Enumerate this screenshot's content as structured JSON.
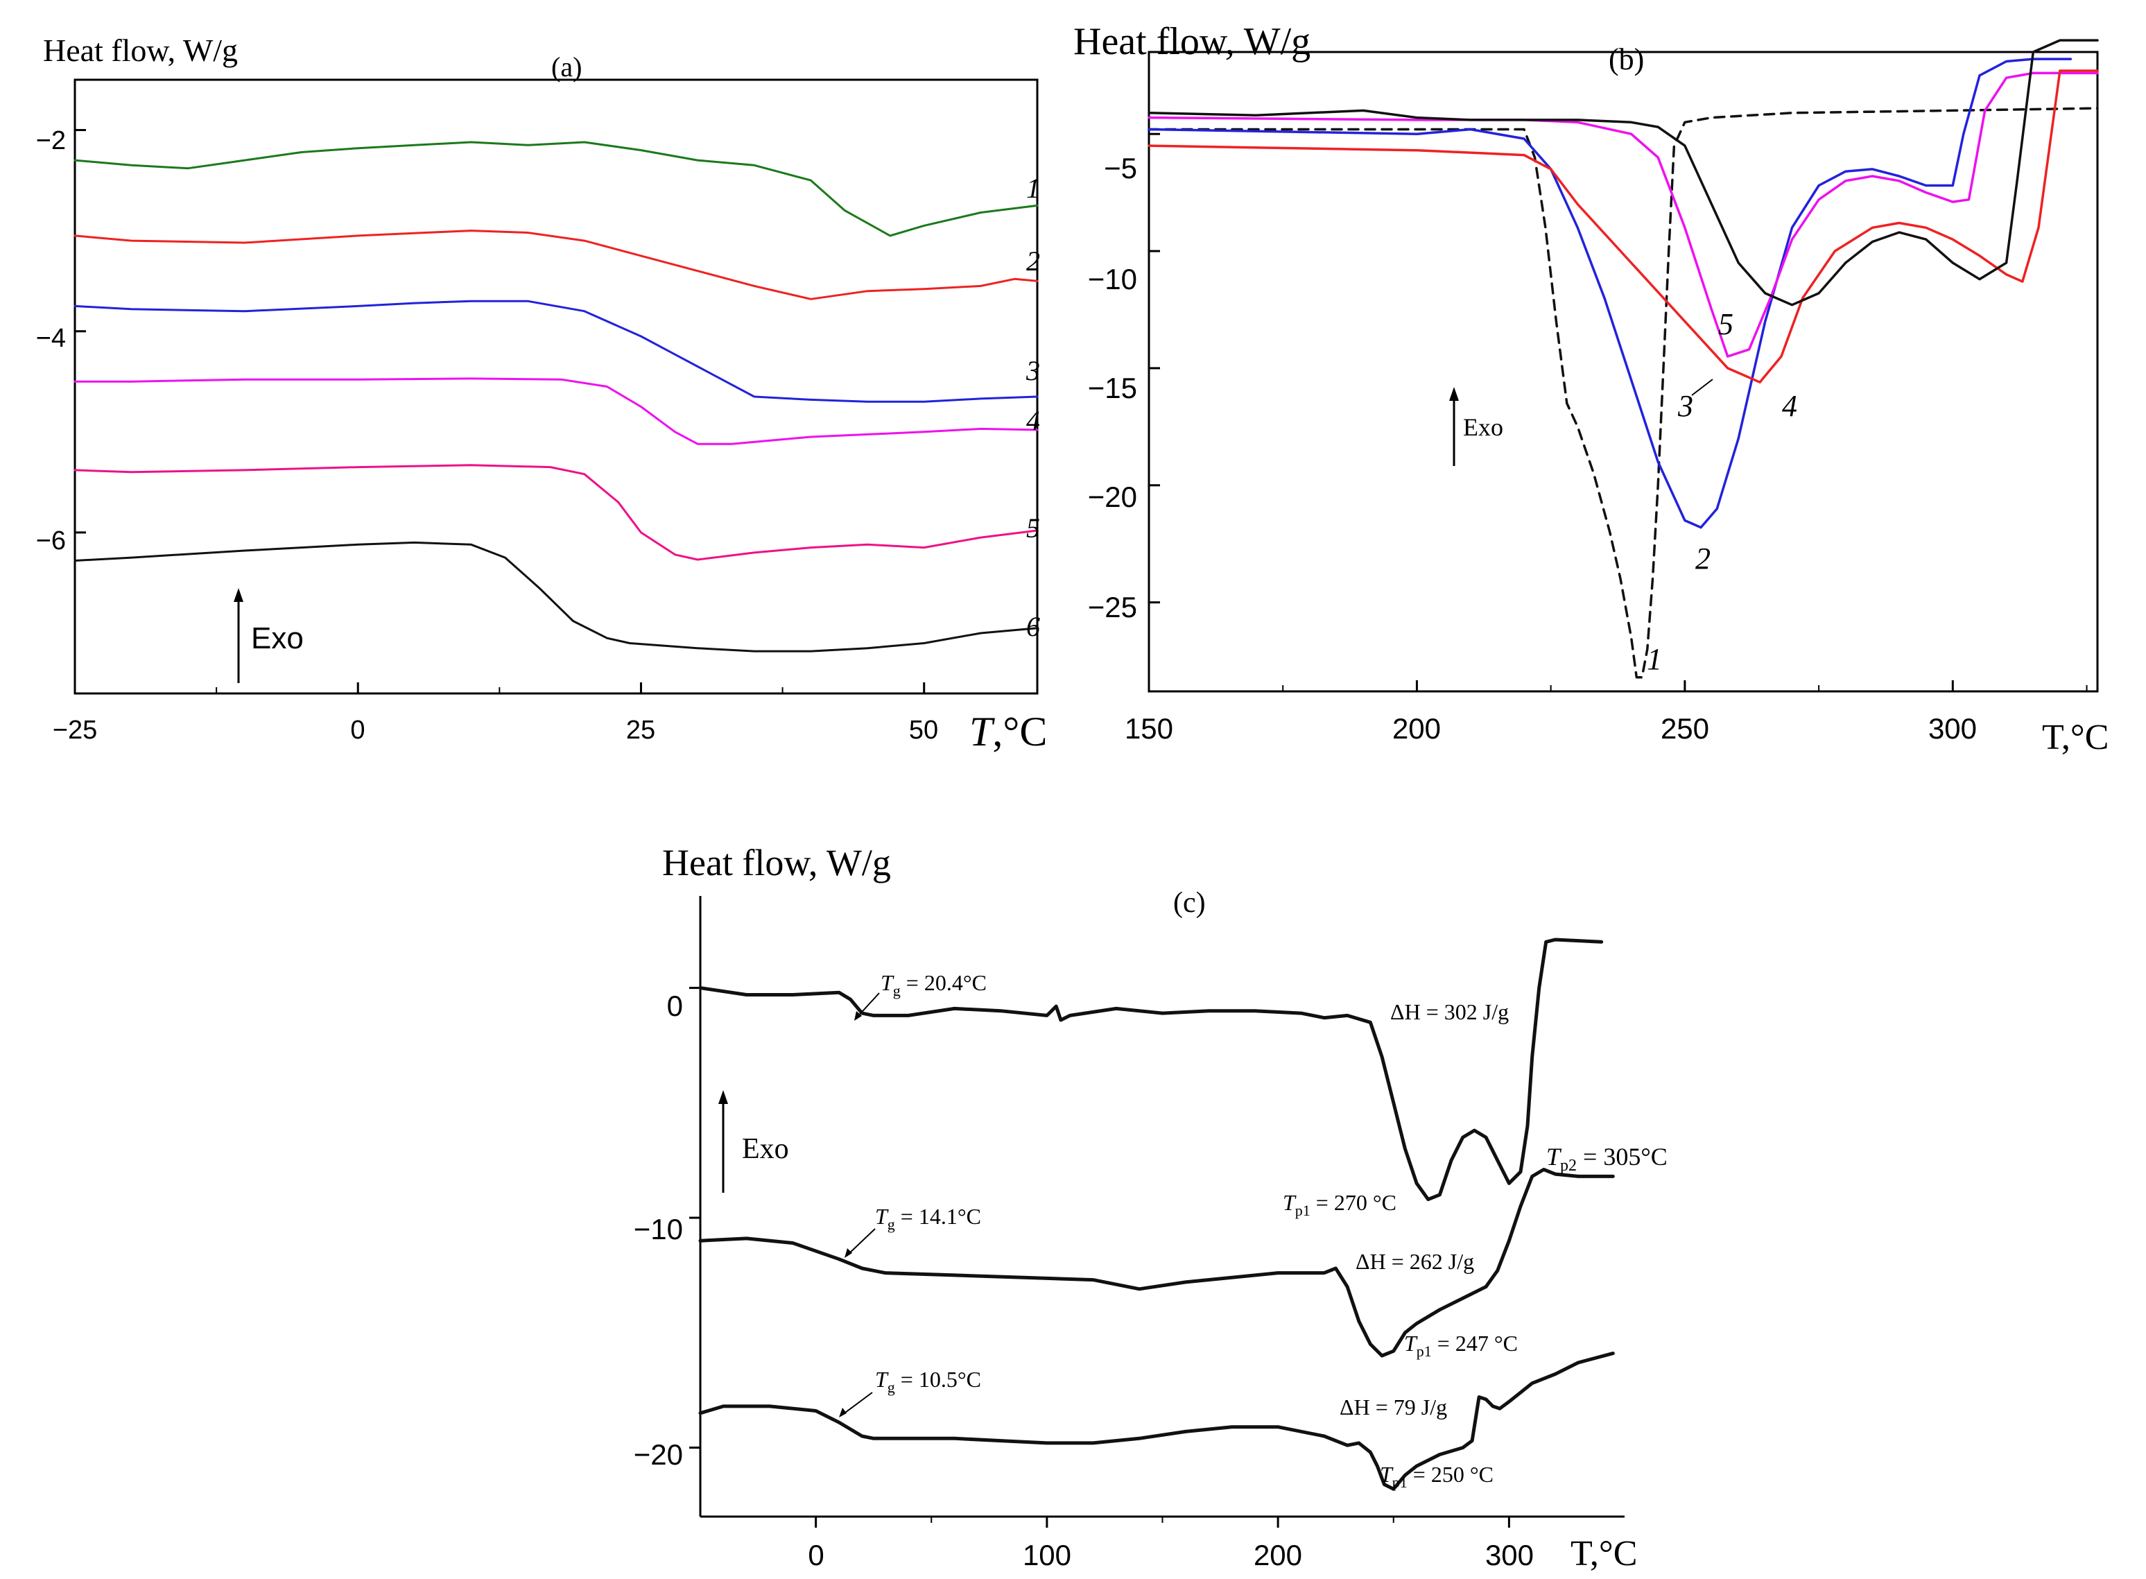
{
  "chart_data": [
    {
      "panel": "(a)",
      "type": "line",
      "ylabel": "Heat flow, W/g",
      "xlabel_main": "T",
      "xlabel_unit": ",°C",
      "xlim": [
        -25,
        60
      ],
      "ylim": [
        -7.6,
        -1.5
      ],
      "xticks": [
        -25,
        0,
        25,
        50
      ],
      "xtick_labels": [
        "−25",
        "0",
        "25",
        "50"
      ],
      "yticks": [
        -2,
        -4,
        -6
      ],
      "ytick_labels": [
        "−2",
        "−4",
        "−6"
      ],
      "exo_label": "Exo",
      "series": [
        {
          "name": "1",
          "color": "#1a7a1a",
          "x": [
            -25,
            -20,
            -15,
            -10,
            -5,
            0,
            5,
            10,
            15,
            20,
            25,
            30,
            35,
            40,
            43,
            47,
            50,
            55,
            60
          ],
          "y": [
            -2.3,
            -2.35,
            -2.38,
            -2.3,
            -2.22,
            -2.18,
            -2.15,
            -2.12,
            -2.15,
            -2.12,
            -2.2,
            -2.3,
            -2.35,
            -2.5,
            -2.8,
            -3.05,
            -2.95,
            -2.82,
            -2.75
          ]
        },
        {
          "name": "2",
          "color": "#ee2222",
          "x": [
            -25,
            -20,
            -10,
            0,
            10,
            15,
            20,
            25,
            30,
            35,
            40,
            45,
            50,
            55,
            58,
            60
          ],
          "y": [
            -3.05,
            -3.1,
            -3.12,
            -3.05,
            -3.0,
            -3.02,
            -3.1,
            -3.25,
            -3.4,
            -3.55,
            -3.68,
            -3.6,
            -3.58,
            -3.55,
            -3.48,
            -3.5
          ]
        },
        {
          "name": "3",
          "color": "#2222dd",
          "x": [
            -25,
            -20,
            -10,
            0,
            5,
            10,
            15,
            20,
            25,
            30,
            35,
            40,
            45,
            50,
            55,
            60
          ],
          "y": [
            -3.75,
            -3.78,
            -3.8,
            -3.75,
            -3.72,
            -3.7,
            -3.7,
            -3.8,
            -4.05,
            -4.35,
            -4.65,
            -4.68,
            -4.7,
            -4.7,
            -4.67,
            -4.65
          ]
        },
        {
          "name": "4",
          "color": "#ee11ee",
          "x": [
            -25,
            -20,
            -10,
            0,
            10,
            18,
            22,
            25,
            28,
            30,
            33,
            40,
            50,
            55,
            60
          ],
          "y": [
            -4.5,
            -4.5,
            -4.48,
            -4.48,
            -4.47,
            -4.48,
            -4.55,
            -4.75,
            -5.0,
            -5.12,
            -5.12,
            -5.05,
            -5.0,
            -4.97,
            -4.98
          ]
        },
        {
          "name": "5",
          "color": "#ee1188",
          "x": [
            -25,
            -20,
            -10,
            0,
            10,
            17,
            20,
            23,
            25,
            28,
            30,
            35,
            40,
            45,
            50,
            55,
            60
          ],
          "y": [
            -5.38,
            -5.4,
            -5.38,
            -5.35,
            -5.33,
            -5.35,
            -5.42,
            -5.7,
            -6.0,
            -6.22,
            -6.27,
            -6.2,
            -6.15,
            -6.12,
            -6.15,
            -6.05,
            -5.98
          ]
        },
        {
          "name": "6",
          "color": "#111111",
          "x": [
            -25,
            -20,
            -10,
            0,
            5,
            10,
            13,
            16,
            19,
            22,
            24,
            30,
            35,
            40,
            45,
            50,
            55,
            60
          ],
          "y": [
            -6.28,
            -6.25,
            -6.18,
            -6.12,
            -6.1,
            -6.12,
            -6.25,
            -6.55,
            -6.88,
            -7.05,
            -7.1,
            -7.15,
            -7.18,
            -7.18,
            -7.15,
            -7.1,
            -7.0,
            -6.95
          ]
        }
      ]
    },
    {
      "panel": "(b)",
      "type": "line",
      "ylabel": "Heat flow, W/g",
      "xlabel": "T,°C",
      "xlim": [
        150,
        327
      ],
      "ylim": [
        -28.8,
        -1.5
      ],
      "xticks": [
        150,
        200,
        250,
        300
      ],
      "xtick_labels": [
        "150",
        "200",
        "250",
        "300"
      ],
      "yticks": [
        -5,
        -10,
        -15,
        -20,
        -25
      ],
      "ytick_labels": [
        "−5",
        "−10",
        "−15",
        "−20",
        "−25"
      ],
      "exo_label": "Exo",
      "series": [
        {
          "name": "1",
          "color": "#111111",
          "dashed": true,
          "x": [
            150,
            180,
            220,
            222,
            224,
            226,
            228,
            230,
            233,
            236,
            238,
            240,
            241,
            242,
            243,
            244,
            245,
            246,
            247,
            248,
            250,
            255,
            270,
            300,
            327
          ],
          "y": [
            -4.8,
            -4.8,
            -4.8,
            -6,
            -9,
            -13,
            -16.5,
            -17.5,
            -19.5,
            -22,
            -24,
            -26.5,
            -28.2,
            -28.2,
            -27,
            -24,
            -20,
            -15,
            -10,
            -5.5,
            -4.5,
            -4.3,
            -4.1,
            -4.0,
            -3.9
          ]
        },
        {
          "name": "2",
          "color": "#2222dd",
          "x": [
            150,
            200,
            210,
            220,
            225,
            230,
            235,
            240,
            245,
            250,
            253,
            256,
            260,
            265,
            270,
            275,
            280,
            285,
            290,
            295,
            300,
            302,
            305,
            310,
            315,
            320,
            322
          ],
          "y": [
            -4.8,
            -5.0,
            -4.8,
            -5.2,
            -6.5,
            -9,
            -12,
            -15.5,
            -19,
            -21.5,
            -21.8,
            -21,
            -18,
            -13,
            -9,
            -7.2,
            -6.6,
            -6.5,
            -6.8,
            -7.2,
            -7.2,
            -5,
            -2.5,
            -1.9,
            -1.8,
            -1.8,
            -1.8
          ]
        },
        {
          "name": "3",
          "color": "#ee11ee",
          "x": [
            150,
            200,
            220,
            230,
            240,
            245,
            250,
            255,
            258,
            262,
            266,
            270,
            275,
            280,
            285,
            290,
            295,
            300,
            303,
            306,
            310,
            315,
            327
          ],
          "y": [
            -4.3,
            -4.4,
            -4.4,
            -4.5,
            -5.0,
            -6,
            -9,
            -12.5,
            -14.5,
            -14.2,
            -12,
            -9.5,
            -7.8,
            -7.0,
            -6.8,
            -7.0,
            -7.5,
            -7.9,
            -7.8,
            -4,
            -2.6,
            -2.4,
            -2.4
          ]
        },
        {
          "name": "4",
          "color": "#ee2222",
          "x": [
            150,
            200,
            220,
            225,
            230,
            240,
            250,
            258,
            264,
            268,
            272,
            278,
            285,
            290,
            295,
            300,
            305,
            310,
            313,
            316,
            320,
            327
          ],
          "y": [
            -5.5,
            -5.7,
            -5.9,
            -6.5,
            -8,
            -10.5,
            -13,
            -15,
            -15.6,
            -14.5,
            -12,
            -10,
            -9,
            -8.8,
            -9.0,
            -9.5,
            -10.2,
            -11,
            -11.3,
            -9,
            -2.3,
            -2.3
          ]
        },
        {
          "name": "5",
          "color": "#111111",
          "x": [
            150,
            170,
            190,
            200,
            210,
            220,
            230,
            240,
            245,
            250,
            255,
            260,
            265,
            270,
            275,
            280,
            285,
            290,
            295,
            300,
            305,
            310,
            312,
            315,
            320,
            327
          ],
          "y": [
            -4.1,
            -4.2,
            -4.0,
            -4.3,
            -4.4,
            -4.4,
            -4.4,
            -4.5,
            -4.7,
            -5.5,
            -8,
            -10.5,
            -11.8,
            -12.3,
            -11.8,
            -10.5,
            -9.6,
            -9.2,
            -9.5,
            -10.5,
            -11.2,
            -10.5,
            -7,
            -1.5,
            -1.0,
            -1.0
          ]
        }
      ]
    },
    {
      "panel": "(c)",
      "type": "line",
      "ylabel": "Heat flow, W/g",
      "xlabel": "T,°C",
      "xlim": [
        -50,
        350
      ],
      "ylim": [
        -23,
        4
      ],
      "xticks": [
        0,
        100,
        200,
        300
      ],
      "xtick_labels": [
        "0",
        "100",
        "200",
        "300"
      ],
      "yticks": [
        0,
        -10,
        -20
      ],
      "ytick_labels": [
        "0",
        "−10",
        "−20"
      ],
      "exo_label": "Exo",
      "series": [
        {
          "name": "top",
          "color": "#111111",
          "x": [
            -50,
            -30,
            -10,
            10,
            15,
            20,
            25,
            40,
            60,
            80,
            100,
            104,
            106,
            110,
            130,
            150,
            170,
            190,
            210,
            220,
            230,
            240,
            245,
            250,
            255,
            260,
            265,
            270,
            275,
            280,
            285,
            290,
            295,
            300,
            305,
            308,
            310,
            313,
            316,
            320,
            340
          ],
          "y": [
            0,
            -0.3,
            -0.3,
            -0.2,
            -0.5,
            -1.1,
            -1.2,
            -1.2,
            -0.9,
            -1.0,
            -1.2,
            -0.8,
            -1.4,
            -1.2,
            -0.9,
            -1.1,
            -1.0,
            -1.0,
            -1.1,
            -1.3,
            -1.2,
            -1.5,
            -3,
            -5,
            -7,
            -8.5,
            -9.2,
            -9.0,
            -7.5,
            -6.5,
            -6.2,
            -6.5,
            -7.5,
            -8.5,
            -8.0,
            -6,
            -3,
            0,
            2,
            2.1,
            2
          ]
        },
        {
          "name": "middle",
          "color": "#111111",
          "x": [
            -50,
            -30,
            -10,
            10,
            20,
            30,
            60,
            90,
            120,
            140,
            160,
            180,
            200,
            220,
            225,
            230,
            235,
            240,
            245,
            250,
            255,
            260,
            270,
            280,
            290,
            295,
            300,
            305,
            310,
            315,
            320,
            330,
            345
          ],
          "y": [
            -11,
            -10.9,
            -11.1,
            -11.8,
            -12.2,
            -12.4,
            -12.5,
            -12.6,
            -12.7,
            -13.1,
            -12.8,
            -12.6,
            -12.4,
            -12.4,
            -12.2,
            -13,
            -14.5,
            -15.5,
            -16,
            -15.8,
            -15,
            -14.6,
            -14.0,
            -13.5,
            -13.0,
            -12.3,
            -11,
            -9.5,
            -8.2,
            -7.9,
            -8.1,
            -8.2,
            -8.2
          ]
        },
        {
          "name": "bottom",
          "color": "#111111",
          "x": [
            -50,
            -40,
            -20,
            0,
            10,
            20,
            25,
            40,
            60,
            80,
            100,
            120,
            140,
            160,
            180,
            200,
            220,
            230,
            235,
            240,
            243,
            246,
            250,
            255,
            260,
            270,
            280,
            284,
            287,
            290,
            293,
            296,
            300,
            310,
            320,
            330,
            345
          ],
          "y": [
            -18.5,
            -18.2,
            -18.2,
            -18.4,
            -18.9,
            -19.5,
            -19.6,
            -19.6,
            -19.6,
            -19.7,
            -19.8,
            -19.8,
            -19.6,
            -19.3,
            -19.1,
            -19.1,
            -19.5,
            -19.9,
            -19.8,
            -20.2,
            -20.8,
            -21.6,
            -21.8,
            -21.2,
            -20.8,
            -20.3,
            -20.0,
            -19.7,
            -17.8,
            -17.9,
            -18.2,
            -18.3,
            -18.0,
            -17.2,
            -16.8,
            -16.3,
            -15.9
          ]
        }
      ]
    }
  ],
  "panel_a": {
    "title": "(a)",
    "curve_labels": [
      "1",
      "2",
      "3",
      "4",
      "5",
      "6"
    ]
  },
  "panel_b": {
    "title": "(b)",
    "curve_labels": [
      "1",
      "2",
      "3",
      "4",
      "5"
    ]
  },
  "panel_c": {
    "title": "(c)",
    "annotations": {
      "tg_top_T": "T",
      "tg_top_sub": "g",
      "tg_top_val": " = 20.4°C",
      "tg_mid_T": "T",
      "tg_mid_sub": "g",
      "tg_mid_val": " = 14.1°C",
      "tg_bot_T": "T",
      "tg_bot_sub": "g",
      "tg_bot_val": " = 10.5°C",
      "dh_top": "ΔH = 302 J/g",
      "dh_mid": "ΔH = 262 J/g",
      "dh_bot": "ΔH = 79 J/g",
      "tp1_top_T": "T",
      "tp1_top_sub": "p1",
      "tp1_top_val": " = 270 °C",
      "tp2_top_T": "T",
      "tp2_top_sub": "p2",
      "tp2_top_val": " = 305°C",
      "tp1_mid_T": "T",
      "tp1_mid_sub": "p1",
      "tp1_mid_val": " = 247 °C",
      "tp1_bot_T": "T",
      "tp1_bot_sub": "p1",
      "tp1_bot_val": " = 250 °C"
    }
  }
}
